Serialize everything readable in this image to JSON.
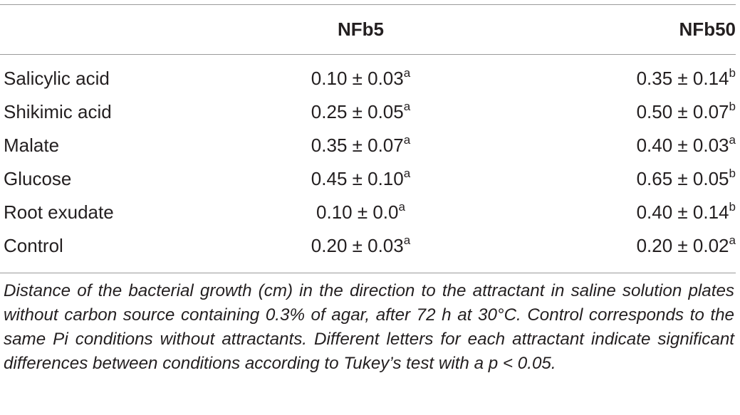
{
  "table": {
    "header": {
      "label": "",
      "col1": "NFb5",
      "col2": "NFb50"
    },
    "rows": [
      {
        "label": "Salicylic acid",
        "nfb5": {
          "value": "0.10 ± 0.03",
          "letter": "a"
        },
        "nfb50": {
          "value": "0.35 ± 0.14",
          "letter": "b"
        }
      },
      {
        "label": "Shikimic acid",
        "nfb5": {
          "value": "0.25 ± 0.05",
          "letter": "a"
        },
        "nfb50": {
          "value": "0.50 ± 0.07",
          "letter": "b"
        }
      },
      {
        "label": "Malate",
        "nfb5": {
          "value": "0.35 ± 0.07",
          "letter": "a"
        },
        "nfb50": {
          "value": "0.40 ± 0.03",
          "letter": "a"
        }
      },
      {
        "label": "Glucose",
        "nfb5": {
          "value": "0.45 ± 0.10",
          "letter": "a"
        },
        "nfb50": {
          "value": "0.65 ± 0.05",
          "letter": "b"
        }
      },
      {
        "label": "Root exudate",
        "nfb5": {
          "value": "0.10 ± 0.0",
          "letter": "a"
        },
        "nfb50": {
          "value": "0.40 ± 0.14",
          "letter": "b"
        }
      },
      {
        "label": "Control",
        "nfb5": {
          "value": "0.20 ± 0.03",
          "letter": "a"
        },
        "nfb50": {
          "value": "0.20 ± 0.02",
          "letter": "a"
        }
      }
    ]
  },
  "caption": "Distance of the bacterial growth (cm) in the direction to the attractant in saline solution plates without carbon source containing 0.3% of agar, after 72 h at 30°C. Control corresponds to the same Pi conditions without attractants. Different letters for each attractant indicate significant differences between conditions according to Tukey’s test with a p < 0.05."
}
